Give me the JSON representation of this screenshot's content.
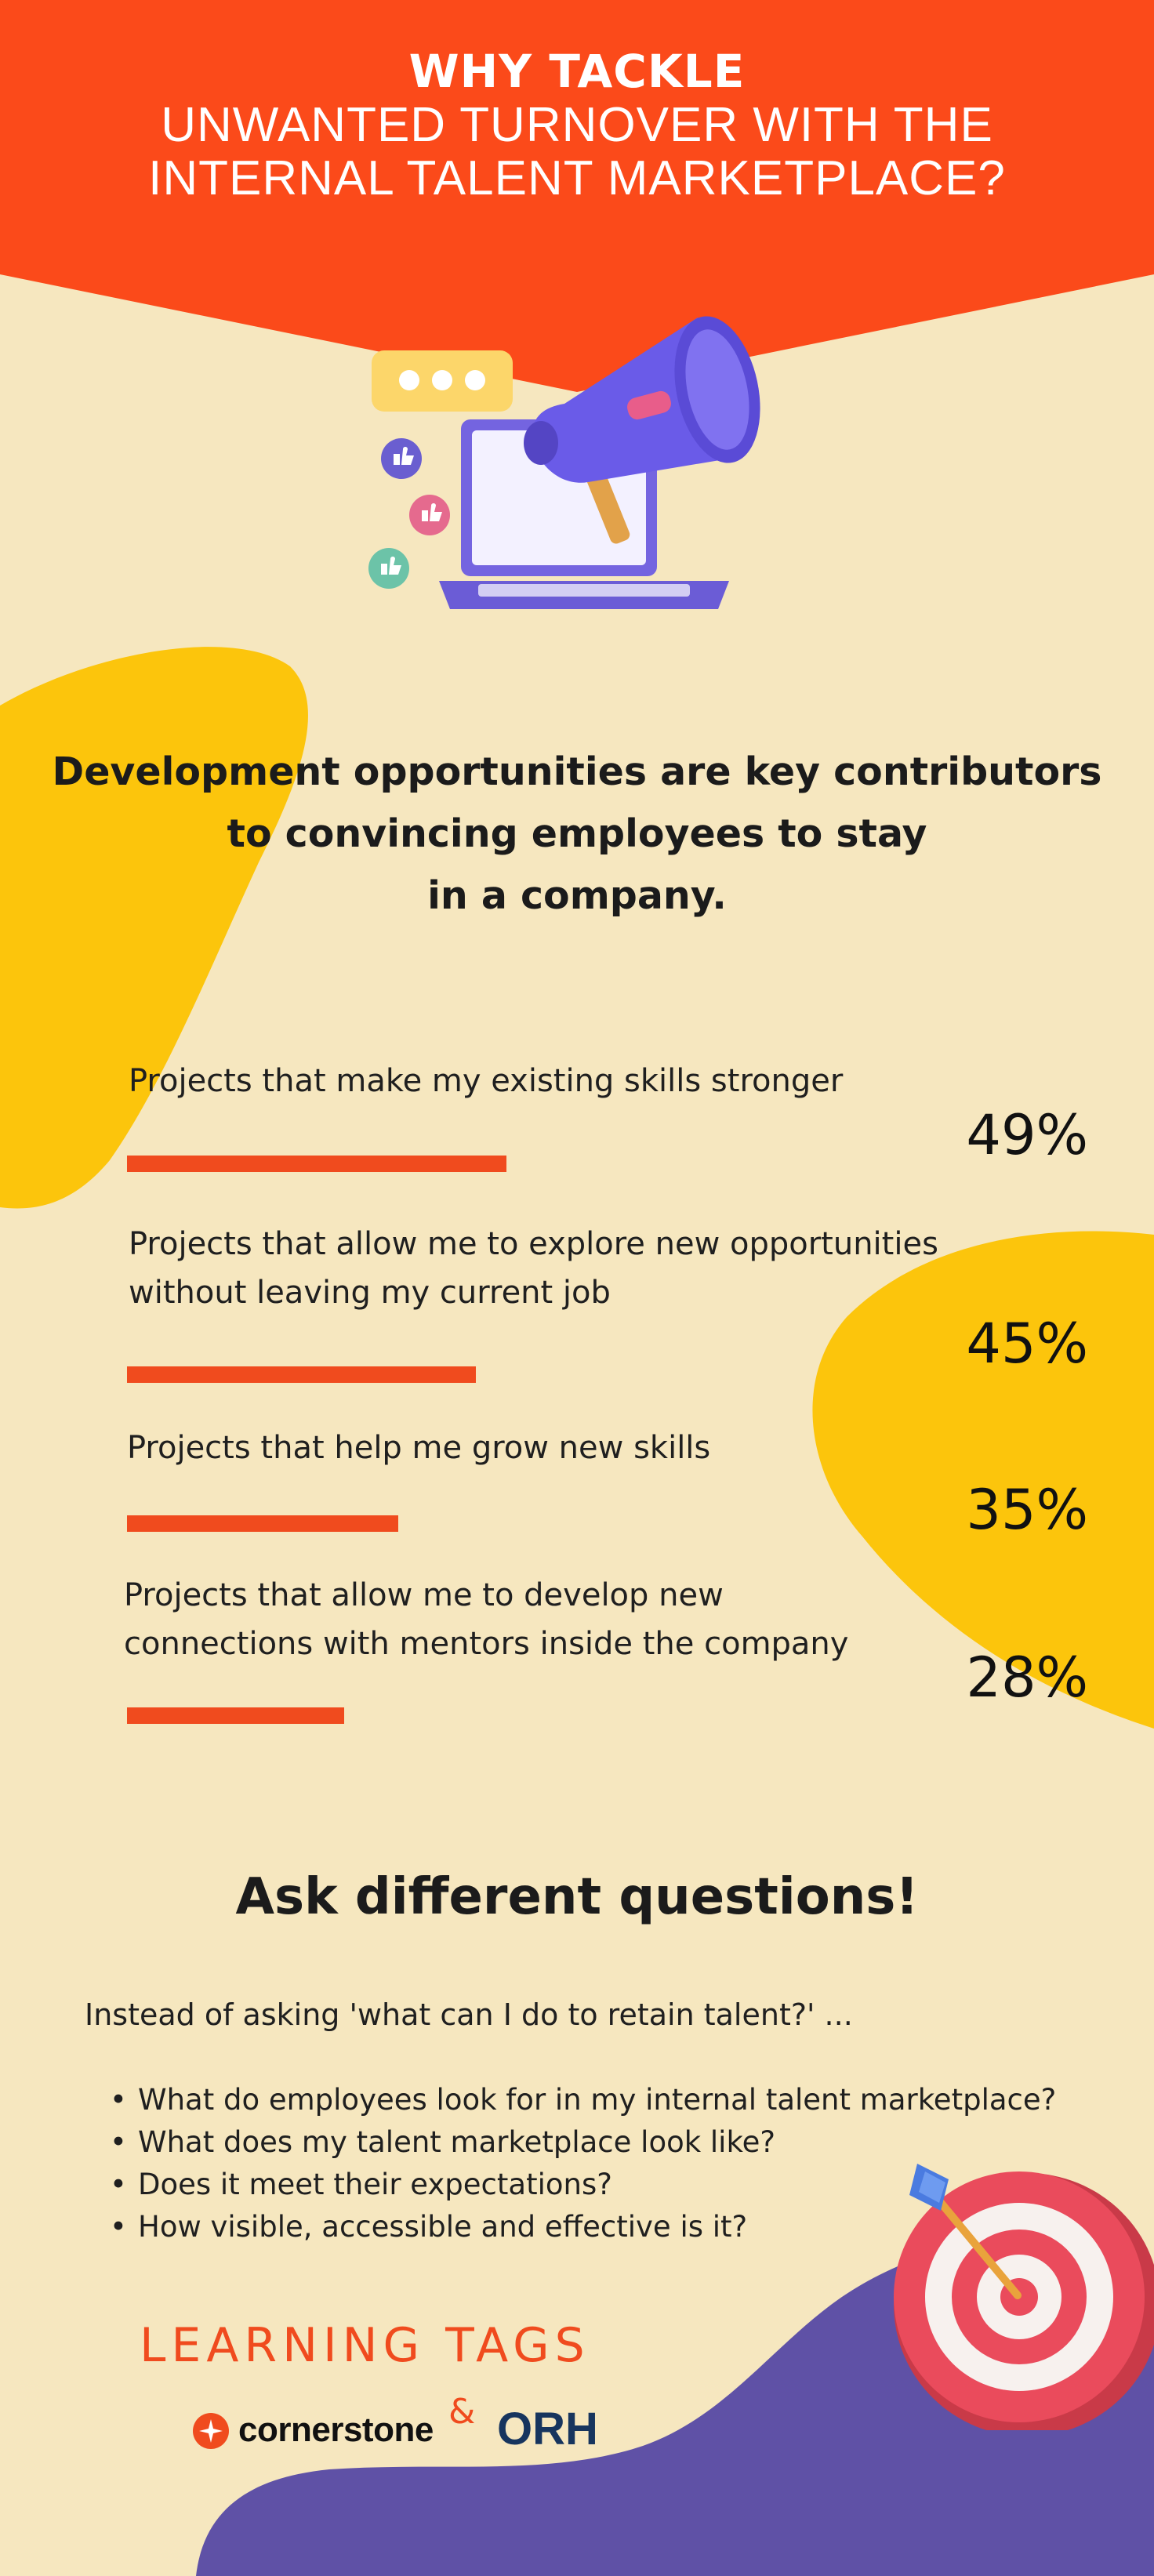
{
  "header": {
    "title_line1": "WHY TACKLE",
    "title_line2": "UNWANTED TURNOVER WITH THE",
    "title_line3": "INTERNAL TALENT MARKETPLACE?"
  },
  "colors": {
    "accent_orange": "#F04B1E",
    "accent_yellow": "#FCC50C",
    "accent_purple": "#5F51A6",
    "background": "#F6E7BF"
  },
  "hero": {
    "icons": [
      "megaphone-icon",
      "laptop-icon",
      "chat-bubble-icon",
      "thumbs-up-icon"
    ]
  },
  "headline": {
    "line1": "Development opportunities are key contributors",
    "line2": "to convincing employees to stay",
    "line3": "in a company."
  },
  "stats": [
    {
      "label_line1": "Projects that make my existing skills stronger",
      "label_line2": "",
      "value": "49%",
      "fraction": 0.49
    },
    {
      "label_line1": "Projects that allow me to explore new opportunities",
      "label_line2": "without leaving my current job",
      "value": "45%",
      "fraction": 0.45
    },
    {
      "label_line1": "Projects that help me grow new skills",
      "label_line2": "",
      "value": "35%",
      "fraction": 0.35
    },
    {
      "label_line1": "Projects that allow me to develop new",
      "label_line2": "connections with mentors inside the company",
      "value": "28%",
      "fraction": 0.28
    }
  ],
  "questions": {
    "title": "Ask different questions!",
    "intro": "Instead of asking 'what can I do to retain talent?' ...",
    "bullet": "•",
    "items": [
      "What do employees look for in my internal talent marketplace?",
      "What does my talent marketplace look like?",
      "Does it meet their expectations?",
      "How visible, accessible and effective is it?"
    ]
  },
  "footer": {
    "brand": "LEARNING TAGS",
    "partner1": "cornerstone",
    "ampersand": "&",
    "partner2": "ORH",
    "target_icon": "dart-target-icon"
  }
}
